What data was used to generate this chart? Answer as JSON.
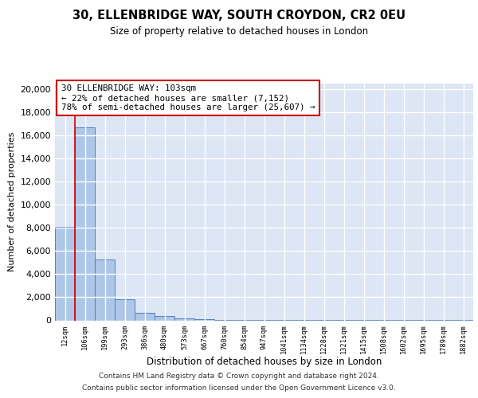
{
  "title1": "30, ELLENBRIDGE WAY, SOUTH CROYDON, CR2 0EU",
  "title2": "Size of property relative to detached houses in London",
  "xlabel": "Distribution of detached houses by size in London",
  "ylabel": "Number of detached properties",
  "bin_labels": [
    "12sqm",
    "106sqm",
    "199sqm",
    "293sqm",
    "386sqm",
    "480sqm",
    "573sqm",
    "667sqm",
    "760sqm",
    "854sqm",
    "947sqm",
    "1041sqm",
    "1134sqm",
    "1228sqm",
    "1321sqm",
    "1415sqm",
    "1508sqm",
    "1602sqm",
    "1695sqm",
    "1789sqm",
    "1882sqm"
  ],
  "bar_heights": [
    8100,
    16700,
    5300,
    1800,
    650,
    350,
    200,
    100,
    60,
    40,
    30,
    20,
    15,
    12,
    10,
    8,
    6,
    5,
    4,
    3,
    2
  ],
  "bar_color": "#aec6e8",
  "bar_edge_color": "#4f81bd",
  "vline_x": 1,
  "vline_color": "#cc0000",
  "annotation_line1": "30 ELLENBRIDGE WAY: 103sqm",
  "annotation_line2": "← 22% of detached houses are smaller (7,152)",
  "annotation_line3": "78% of semi-detached houses are larger (25,607) →",
  "annotation_box_color": "#ffffff",
  "annotation_box_edge": "#cc0000",
  "ylim": [
    0,
    20500
  ],
  "yticks": [
    0,
    2000,
    4000,
    6000,
    8000,
    10000,
    12000,
    14000,
    16000,
    18000,
    20000
  ],
  "background_color": "#dce6f5",
  "grid_color": "#ffffff",
  "footer1": "Contains HM Land Registry data © Crown copyright and database right 2024.",
  "footer2": "Contains public sector information licensed under the Open Government Licence v3.0."
}
